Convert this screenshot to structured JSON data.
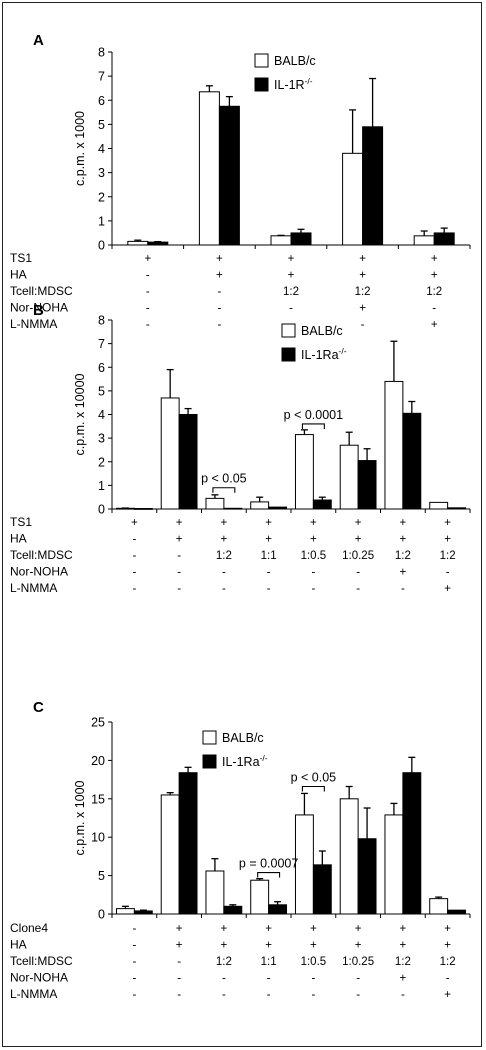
{
  "chart_data": [
    {
      "panel_label": "A",
      "type": "bar",
      "ylabel": "c.p.m. x 1000",
      "ylim": [
        0,
        8
      ],
      "yticks": [
        0,
        1,
        2,
        3,
        4,
        5,
        6,
        7,
        8
      ],
      "legend": {
        "placement": "top-right",
        "items": [
          {
            "name": "BALB/c",
            "sup": "",
            "color": "#ffffff"
          },
          {
            "name": "IL-1R",
            "sup": "-/-",
            "color": "#000000"
          }
        ]
      },
      "series": [
        {
          "name": "BALB/c",
          "values": [
            0.15,
            6.35,
            0.38,
            3.8,
            0.38
          ],
          "errors": [
            0.05,
            0.25,
            0.02,
            1.8,
            0.2
          ]
        },
        {
          "name": "IL-1R-/-",
          "values": [
            0.12,
            5.75,
            0.5,
            4.9,
            0.5
          ],
          "errors": [
            0.02,
            0.4,
            0.15,
            2.0,
            0.2
          ]
        }
      ],
      "condition_rows": [
        {
          "label": "TS1",
          "values": [
            "+",
            "+",
            "+",
            "+",
            "+"
          ]
        },
        {
          "label": "HA",
          "values": [
            "-",
            "+",
            "+",
            "+",
            "+"
          ]
        },
        {
          "label": "Tcell:MDSC",
          "values": [
            "-",
            "-",
            "1:2",
            "1:2",
            "1:2"
          ]
        },
        {
          "label": "Nor-NOHA",
          "values": [
            "-",
            "-",
            "-",
            "+",
            "-"
          ]
        },
        {
          "label": "L-NMMA",
          "values": [
            "-",
            "-",
            "-",
            "-",
            "+"
          ]
        }
      ],
      "annotations": []
    },
    {
      "panel_label": "B",
      "type": "bar",
      "ylabel": "c.p.m. x 10000",
      "ylim": [
        0,
        8
      ],
      "yticks": [
        0,
        1,
        2,
        3,
        4,
        5,
        6,
        7,
        8
      ],
      "legend": {
        "placement": "top-right",
        "items": [
          {
            "name": "BALB/c",
            "sup": "",
            "color": "#ffffff"
          },
          {
            "name": "IL-1Ra",
            "sup": "-/-",
            "color": "#000000"
          }
        ]
      },
      "series": [
        {
          "name": "BALB/c",
          "values": [
            0.03,
            4.7,
            0.45,
            0.3,
            3.15,
            2.7,
            5.4,
            0.28
          ],
          "errors": [
            0.01,
            1.2,
            0.15,
            0.2,
            0.2,
            0.55,
            1.7,
            0.0
          ]
        },
        {
          "name": "IL-1Ra-/-",
          "values": [
            0.02,
            4.0,
            0.03,
            0.08,
            0.38,
            2.05,
            4.05,
            0.05
          ],
          "errors": [
            0.0,
            0.25,
            0.0,
            0.0,
            0.12,
            0.5,
            0.5,
            0.0
          ]
        }
      ],
      "condition_rows": [
        {
          "label": "TS1",
          "values": [
            "+",
            "+",
            "+",
            "+",
            "+",
            "+",
            "+",
            "+"
          ]
        },
        {
          "label": "HA",
          "values": [
            "-",
            "+",
            "+",
            "+",
            "+",
            "+",
            "+",
            "+"
          ]
        },
        {
          "label": "Tcell:MDSC",
          "values": [
            "-",
            "-",
            "1:2",
            "1:1",
            "1:0.5",
            "1:0.25",
            "1:2",
            "1:2"
          ]
        },
        {
          "label": "Nor-NOHA",
          "values": [
            "-",
            "-",
            "-",
            "-",
            "-",
            "-",
            "+",
            "-"
          ]
        },
        {
          "label": "L-NMMA",
          "values": [
            "-",
            "-",
            "-",
            "-",
            "-",
            "-",
            "-",
            "+"
          ]
        }
      ],
      "annotations": [
        {
          "group": 2,
          "text": "p < 0.05",
          "y": 0.9
        },
        {
          "group": 4,
          "text": "p < 0.0001",
          "y": 3.6
        }
      ]
    },
    {
      "panel_label": "C",
      "type": "bar",
      "ylabel": "c.p.m. x 1000",
      "ylim": [
        0,
        25
      ],
      "yticks": [
        0,
        5,
        10,
        15,
        20,
        25
      ],
      "legend": {
        "placement": "top-center",
        "items": [
          {
            "name": "BALB/c",
            "sup": "",
            "color": "#ffffff"
          },
          {
            "name": "IL-1Ra",
            "sup": "-/-",
            "color": "#000000"
          }
        ]
      },
      "series": [
        {
          "name": "BALB/c",
          "values": [
            0.7,
            15.5,
            5.6,
            4.4,
            12.9,
            15.0,
            12.9,
            2.0
          ],
          "errors": [
            0.3,
            0.3,
            1.6,
            0.2,
            2.8,
            1.6,
            1.5,
            0.2
          ]
        },
        {
          "name": "IL-1Ra-/-",
          "values": [
            0.4,
            18.4,
            1.0,
            1.2,
            6.4,
            9.8,
            18.4,
            0.5
          ],
          "errors": [
            0.1,
            0.7,
            0.2,
            0.4,
            1.8,
            4.0,
            2.0,
            0.0
          ]
        }
      ],
      "condition_rows": [
        {
          "label": "Clone4",
          "values": [
            "-",
            "+",
            "+",
            "+",
            "+",
            "+",
            "+",
            "+"
          ]
        },
        {
          "label": "HA",
          "values": [
            "-",
            "+",
            "+",
            "+",
            "+",
            "+",
            "+",
            "+"
          ]
        },
        {
          "label": "Tcell:MDSC",
          "values": [
            "-",
            "-",
            "1:2",
            "1:1",
            "1:0.5",
            "1:0.25",
            "1:2",
            "1:2"
          ]
        },
        {
          "label": "Nor-NOHA",
          "values": [
            "-",
            "-",
            "-",
            "-",
            "-",
            "-",
            "+",
            "-"
          ]
        },
        {
          "label": "L-NMMA",
          "values": [
            "-",
            "-",
            "-",
            "-",
            "-",
            "-",
            "-",
            "+"
          ]
        }
      ],
      "annotations": [
        {
          "group": 3,
          "text": "p = 0.0007",
          "y": 5.4
        },
        {
          "group": 4,
          "text": "p < 0.05",
          "y": 16.6
        }
      ]
    }
  ]
}
